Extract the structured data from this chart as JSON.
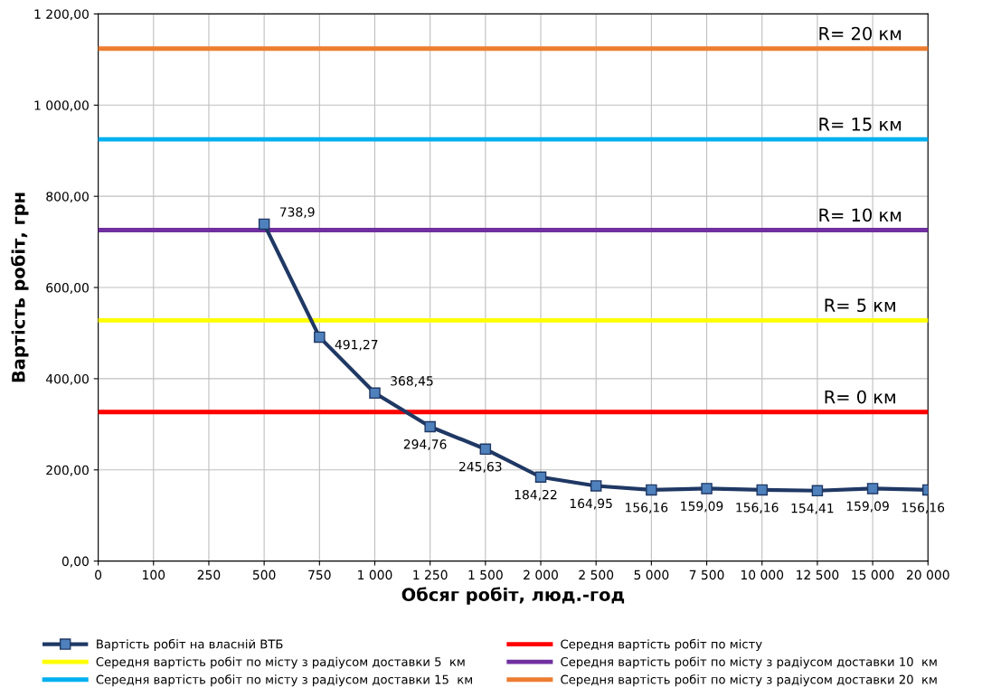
{
  "chart_data": {
    "type": "line",
    "xlabel": "Обсяг робіт, люд.-год",
    "ylabel": "Вартість робіт, грн",
    "categories": [
      "0",
      "100",
      "250",
      "500",
      "750",
      "1 000",
      "1 250",
      "1 500",
      "2 000",
      "2 500",
      "5 000",
      "7 500",
      "10 000",
      "12 500",
      "15 000",
      "20 000"
    ],
    "ylim": [
      0,
      1200
    ],
    "yticks": [
      {
        "value": 0,
        "label": "0,00"
      },
      {
        "value": 200,
        "label": "200,00"
      },
      {
        "value": 400,
        "label": "400,00"
      },
      {
        "value": 600,
        "label": "600,00"
      },
      {
        "value": 800,
        "label": "800,00"
      },
      {
        "value": 1000,
        "label": "1 000,00"
      },
      {
        "value": 1200,
        "label": "1 200,00"
      }
    ],
    "grid": true,
    "legend": "bottom",
    "series": [
      {
        "name": "Вартість робіт на власній ВТБ",
        "color": "#1f3864",
        "marker": "square",
        "values": [
          null,
          null,
          null,
          738.9,
          491.27,
          368.45,
          294.76,
          245.63,
          184.22,
          164.95,
          156.16,
          159.09,
          156.16,
          154.41,
          159.09,
          156.16
        ],
        "value_labels": [
          null,
          null,
          null,
          "738,9",
          "491,27",
          "368,45",
          "294,76",
          "245,63",
          "184,22",
          "164,95",
          "156,16",
          "159,09",
          "156,16",
          "154,41",
          "159,09",
          "156,16"
        ]
      },
      {
        "name": "Середня вартість робіт по місту",
        "color": "#ff0000",
        "values": [
          327,
          327,
          327,
          327,
          327,
          327,
          327,
          327,
          327,
          327,
          327,
          327,
          327,
          327,
          327,
          327
        ]
      },
      {
        "name": "Середня вартість робіт по місту з радіусом доставки 5  км",
        "color": "#ffff00",
        "values": [
          528,
          528,
          528,
          528,
          528,
          528,
          528,
          528,
          528,
          528,
          528,
          528,
          528,
          528,
          528,
          528
        ]
      },
      {
        "name": "Середня вартість робіт по місту з радіусом доставки 10  км",
        "color": "#7030a0",
        "values": [
          726,
          726,
          726,
          726,
          726,
          726,
          726,
          726,
          726,
          726,
          726,
          726,
          726,
          726,
          726,
          726
        ]
      },
      {
        "name": "Середня вартість робіт по місту з радіусом доставки 15  км",
        "color": "#00b0f0",
        "values": [
          925,
          925,
          925,
          925,
          925,
          925,
          925,
          925,
          925,
          925,
          925,
          925,
          925,
          925,
          925,
          925
        ]
      },
      {
        "name": "Середня вартість робіт по місту з радіусом доставки 20  км",
        "color": "#ed7d31",
        "values": [
          1124,
          1124,
          1124,
          1124,
          1124,
          1124,
          1124,
          1124,
          1124,
          1124,
          1124,
          1124,
          1124,
          1124,
          1124,
          1124
        ]
      }
    ],
    "annotations": [
      {
        "text": "R= 0 км",
        "x": "15 000",
        "y": 327
      },
      {
        "text": "R= 5 км",
        "x": "15 000",
        "y": 528
      },
      {
        "text": "R= 10 км",
        "x": "15 000",
        "y": 726
      },
      {
        "text": "R= 15 км",
        "x": "15 000",
        "y": 925
      },
      {
        "text": "R= 20 км",
        "x": "15 000",
        "y": 1124
      }
    ]
  }
}
